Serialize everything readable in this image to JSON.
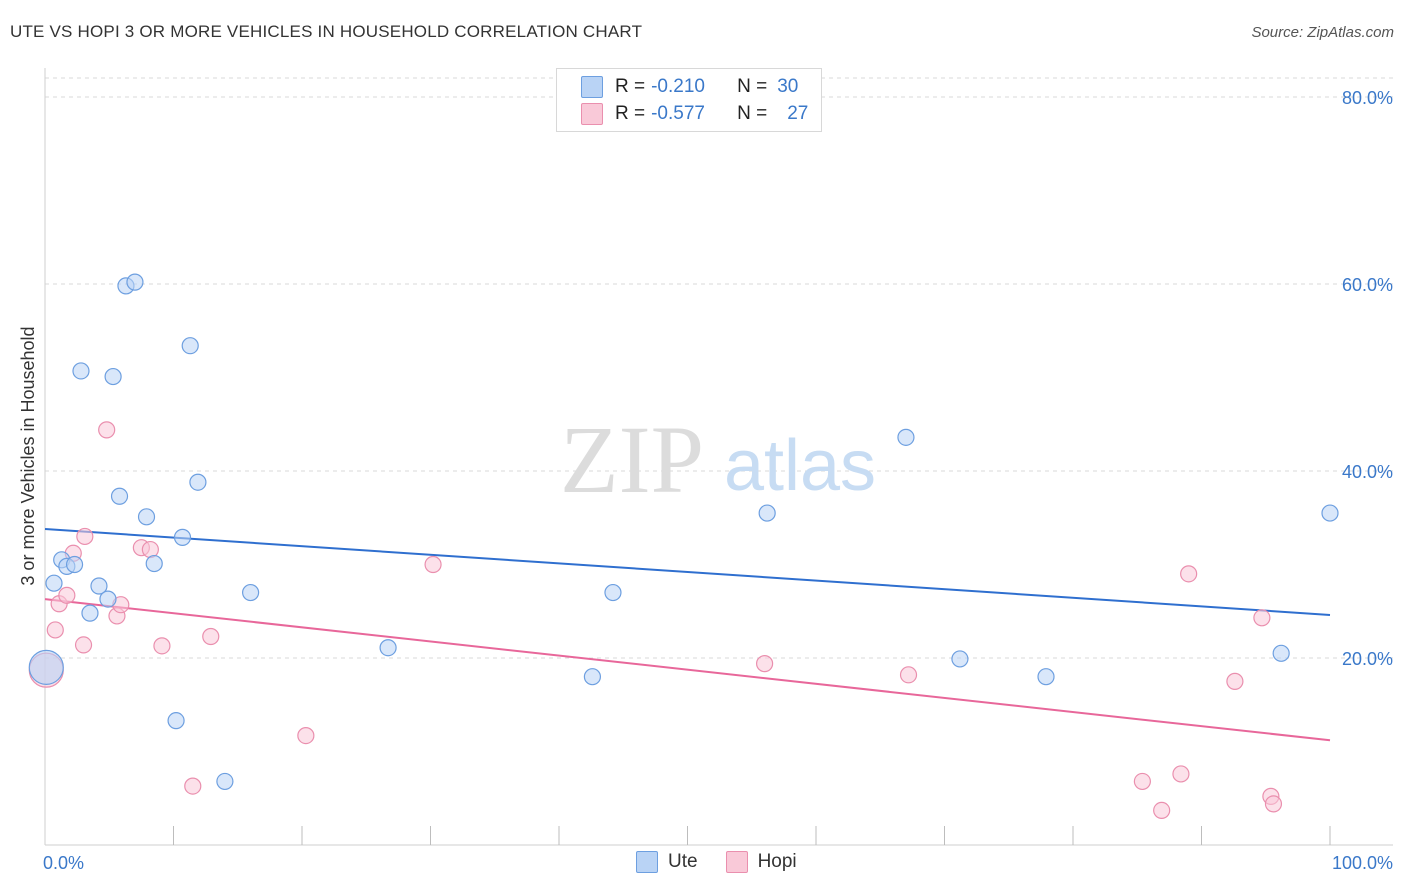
{
  "title": "UTE VS HOPI 3 OR MORE VEHICLES IN HOUSEHOLD CORRELATION CHART",
  "source": "Source: ZipAtlas.com",
  "watermark": {
    "zip": "ZIP",
    "atlas": "atlas"
  },
  "colors": {
    "ute_fill": "#b9d3f5",
    "ute_stroke": "#6d9fe0",
    "ute_line": "#2f6fcf",
    "hopi_fill": "#f9c9d8",
    "hopi_stroke": "#ea8fae",
    "hopi_line": "#e8679a",
    "grid": "#d9d9d9",
    "axis_label": "#3a78c9"
  },
  "legend": {
    "ute": {
      "r_label": "R =",
      "r_value": "-0.210",
      "n_label": "N =",
      "n_value": "30"
    },
    "hopi": {
      "r_label": "R =",
      "r_value": "-0.577",
      "n_label": "N =",
      "n_value": "27"
    }
  },
  "bottom_legend": {
    "ute": "Ute",
    "hopi": "Hopi"
  },
  "chart_data": {
    "type": "scatter",
    "title": "UTE VS HOPI 3 OR MORE VEHICLES IN HOUSEHOLD CORRELATION CHART",
    "xlabel": "",
    "ylabel": "3 or more Vehicles in Household",
    "xlim": [
      0,
      100
    ],
    "ylim": [
      0,
      80
    ],
    "x_tick_labels": [
      "0.0%",
      "100.0%"
    ],
    "y_ticks": [
      20,
      40,
      60,
      80
    ],
    "y_tick_labels": [
      "20.0%",
      "40.0%",
      "60.0%",
      "80.0%"
    ],
    "grid": true,
    "series": [
      {
        "name": "Ute",
        "trend": {
          "x": [
            0,
            100
          ],
          "y": [
            33.8,
            24.6
          ]
        },
        "points": [
          {
            "x": 0.1,
            "y": 19.0,
            "big": true
          },
          {
            "x": 0.7,
            "y": 28.0
          },
          {
            "x": 1.3,
            "y": 30.5
          },
          {
            "x": 1.7,
            "y": 29.8
          },
          {
            "x": 2.3,
            "y": 30.0
          },
          {
            "x": 2.8,
            "y": 50.7
          },
          {
            "x": 3.5,
            "y": 24.8
          },
          {
            "x": 4.2,
            "y": 27.7
          },
          {
            "x": 4.9,
            "y": 26.3
          },
          {
            "x": 5.3,
            "y": 50.1
          },
          {
            "x": 5.8,
            "y": 37.3
          },
          {
            "x": 6.3,
            "y": 59.8
          },
          {
            "x": 7.0,
            "y": 60.2
          },
          {
            "x": 7.9,
            "y": 35.1
          },
          {
            "x": 8.5,
            "y": 30.1
          },
          {
            "x": 10.2,
            "y": 13.3
          },
          {
            "x": 10.7,
            "y": 32.9
          },
          {
            "x": 11.3,
            "y": 53.4
          },
          {
            "x": 11.9,
            "y": 38.8
          },
          {
            "x": 14.0,
            "y": 6.8
          },
          {
            "x": 16.0,
            "y": 27.0
          },
          {
            "x": 26.7,
            "y": 21.1
          },
          {
            "x": 42.6,
            "y": 18.0
          },
          {
            "x": 44.2,
            "y": 27.0
          },
          {
            "x": 56.2,
            "y": 35.5
          },
          {
            "x": 67.0,
            "y": 43.6
          },
          {
            "x": 71.2,
            "y": 19.9
          },
          {
            "x": 77.9,
            "y": 18.0
          },
          {
            "x": 96.2,
            "y": 20.5
          },
          {
            "x": 100.0,
            "y": 35.5
          }
        ]
      },
      {
        "name": "Hopi",
        "trend": {
          "x": [
            0,
            100
          ],
          "y": [
            26.3,
            11.2
          ]
        },
        "points": [
          {
            "x": 0.1,
            "y": 18.7,
            "big": true
          },
          {
            "x": 0.8,
            "y": 23.0
          },
          {
            "x": 1.1,
            "y": 25.8
          },
          {
            "x": 1.7,
            "y": 26.7
          },
          {
            "x": 2.2,
            "y": 31.2
          },
          {
            "x": 3.0,
            "y": 21.4
          },
          {
            "x": 3.1,
            "y": 33.0
          },
          {
            "x": 4.8,
            "y": 44.4
          },
          {
            "x": 5.6,
            "y": 24.5
          },
          {
            "x": 5.9,
            "y": 25.7
          },
          {
            "x": 7.5,
            "y": 31.8
          },
          {
            "x": 8.2,
            "y": 31.6
          },
          {
            "x": 9.1,
            "y": 21.3
          },
          {
            "x": 11.5,
            "y": 6.3
          },
          {
            "x": 12.9,
            "y": 22.3
          },
          {
            "x": 20.3,
            "y": 11.7
          },
          {
            "x": 30.2,
            "y": 30.0
          },
          {
            "x": 56.0,
            "y": 19.4
          },
          {
            "x": 67.2,
            "y": 18.2
          },
          {
            "x": 85.4,
            "y": 6.8
          },
          {
            "x": 86.9,
            "y": 3.7
          },
          {
            "x": 88.4,
            "y": 7.6
          },
          {
            "x": 89.0,
            "y": 29.0
          },
          {
            "x": 92.6,
            "y": 17.5
          },
          {
            "x": 94.7,
            "y": 24.3
          },
          {
            "x": 95.4,
            "y": 5.2
          },
          {
            "x": 95.6,
            "y": 4.4
          }
        ]
      }
    ]
  }
}
